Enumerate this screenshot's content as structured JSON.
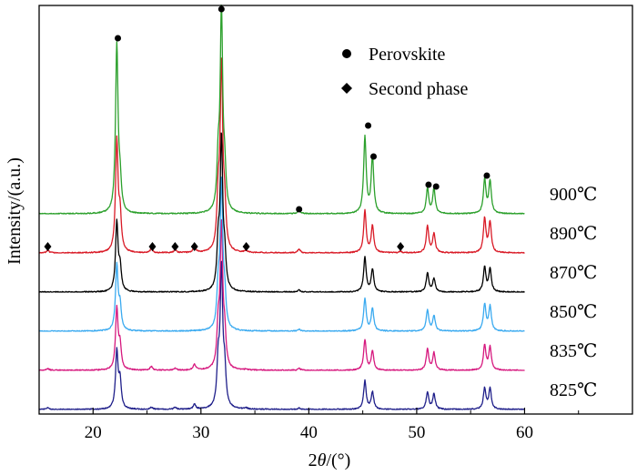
{
  "chart_data": {
    "type": "line",
    "title": "",
    "xlabel": {
      "pre": "2",
      "italic": "θ",
      "post": "/(°)"
    },
    "ylabel": "Intensity/(a.u.)",
    "xlim": [
      15,
      70
    ],
    "xticks": [
      20,
      30,
      40,
      50,
      60
    ],
    "grid": false,
    "legend_position": "top-right",
    "legend": [
      {
        "marker": "circle",
        "label": "Perovskite"
      },
      {
        "marker": "diamond",
        "label": "Second phase"
      }
    ],
    "series": [
      {
        "name": "825℃",
        "color": "#1f1f8a",
        "baseline": 0,
        "peaks": [
          [
            15.8,
            0.8
          ],
          [
            22.2,
            30
          ],
          [
            22.5,
            14
          ],
          [
            25.4,
            1.2
          ],
          [
            27.6,
            1
          ],
          [
            29.4,
            2.5
          ],
          [
            31.6,
            22
          ],
          [
            31.9,
            72
          ],
          [
            32.2,
            18
          ],
          [
            34.2,
            0.6
          ],
          [
            39.1,
            0.7
          ],
          [
            45.2,
            15
          ],
          [
            45.9,
            9
          ],
          [
            51.0,
            9
          ],
          [
            51.6,
            8
          ],
          [
            56.3,
            11
          ],
          [
            56.8,
            11
          ]
        ]
      },
      {
        "name": "835℃",
        "color": "#d6187e",
        "baseline": 1,
        "peaks": [
          [
            15.8,
            1
          ],
          [
            22.2,
            32
          ],
          [
            22.5,
            12
          ],
          [
            25.4,
            2
          ],
          [
            27.6,
            1
          ],
          [
            29.4,
            3
          ],
          [
            31.6,
            20
          ],
          [
            31.9,
            74
          ],
          [
            32.2,
            16
          ],
          [
            34.2,
            0.5
          ],
          [
            39.1,
            1
          ],
          [
            45.2,
            16
          ],
          [
            45.9,
            10
          ],
          [
            51.0,
            11
          ],
          [
            51.6,
            9
          ],
          [
            56.3,
            13
          ],
          [
            56.8,
            12
          ]
        ]
      },
      {
        "name": "850℃",
        "color": "#3aaaf0",
        "baseline": 2,
        "peaks": [
          [
            22.2,
            34
          ],
          [
            22.5,
            12
          ],
          [
            31.6,
            20
          ],
          [
            31.9,
            76
          ],
          [
            32.2,
            16
          ],
          [
            39.1,
            1
          ],
          [
            45.2,
            17
          ],
          [
            45.9,
            12
          ],
          [
            51.0,
            11
          ],
          [
            51.6,
            8
          ],
          [
            56.3,
            14
          ],
          [
            56.8,
            13
          ]
        ]
      },
      {
        "name": "870℃",
        "color": "#000000",
        "baseline": 3,
        "peaks": [
          [
            22.2,
            36
          ],
          [
            22.5,
            12
          ],
          [
            31.6,
            22
          ],
          [
            31.9,
            78
          ],
          [
            32.2,
            16
          ],
          [
            39.1,
            1
          ],
          [
            45.2,
            18
          ],
          [
            45.9,
            12
          ],
          [
            51.0,
            10
          ],
          [
            51.6,
            7
          ],
          [
            56.3,
            13
          ],
          [
            56.8,
            12
          ]
        ]
      },
      {
        "name": "890℃",
        "color": "#d91a26",
        "baseline": 4,
        "peaks": [
          [
            15.8,
            1.5
          ],
          [
            22.2,
            58
          ],
          [
            22.5,
            18
          ],
          [
            25.4,
            2
          ],
          [
            27.6,
            1.5
          ],
          [
            29.4,
            3
          ],
          [
            31.6,
            26
          ],
          [
            31.9,
            96
          ],
          [
            32.2,
            20
          ],
          [
            34.2,
            1
          ],
          [
            39.1,
            2
          ],
          [
            45.2,
            22
          ],
          [
            45.9,
            14
          ],
          [
            48.5,
            0.8
          ],
          [
            51.0,
            14
          ],
          [
            51.6,
            10
          ],
          [
            56.3,
            18
          ],
          [
            56.8,
            16
          ]
        ]
      },
      {
        "name": "900℃",
        "color": "#2ca02c",
        "baseline": 5,
        "peaks": [
          [
            22.2,
            88
          ],
          [
            22.5,
            14
          ],
          [
            31.6,
            24
          ],
          [
            31.9,
            104
          ],
          [
            32.2,
            18
          ],
          [
            39.1,
            2
          ],
          [
            45.2,
            40
          ],
          [
            45.9,
            30
          ],
          [
            51.0,
            13
          ],
          [
            51.6,
            13
          ],
          [
            56.3,
            18
          ],
          [
            56.8,
            17
          ]
        ]
      }
    ],
    "annotations": {
      "perovskite_markers_2theta": [
        22.3,
        31.9,
        39.1,
        45.5,
        46.0,
        51.1,
        51.8,
        56.5
      ],
      "second_phase_markers_2theta": [
        15.8,
        25.5,
        27.6,
        29.4,
        34.2,
        48.5
      ]
    }
  }
}
